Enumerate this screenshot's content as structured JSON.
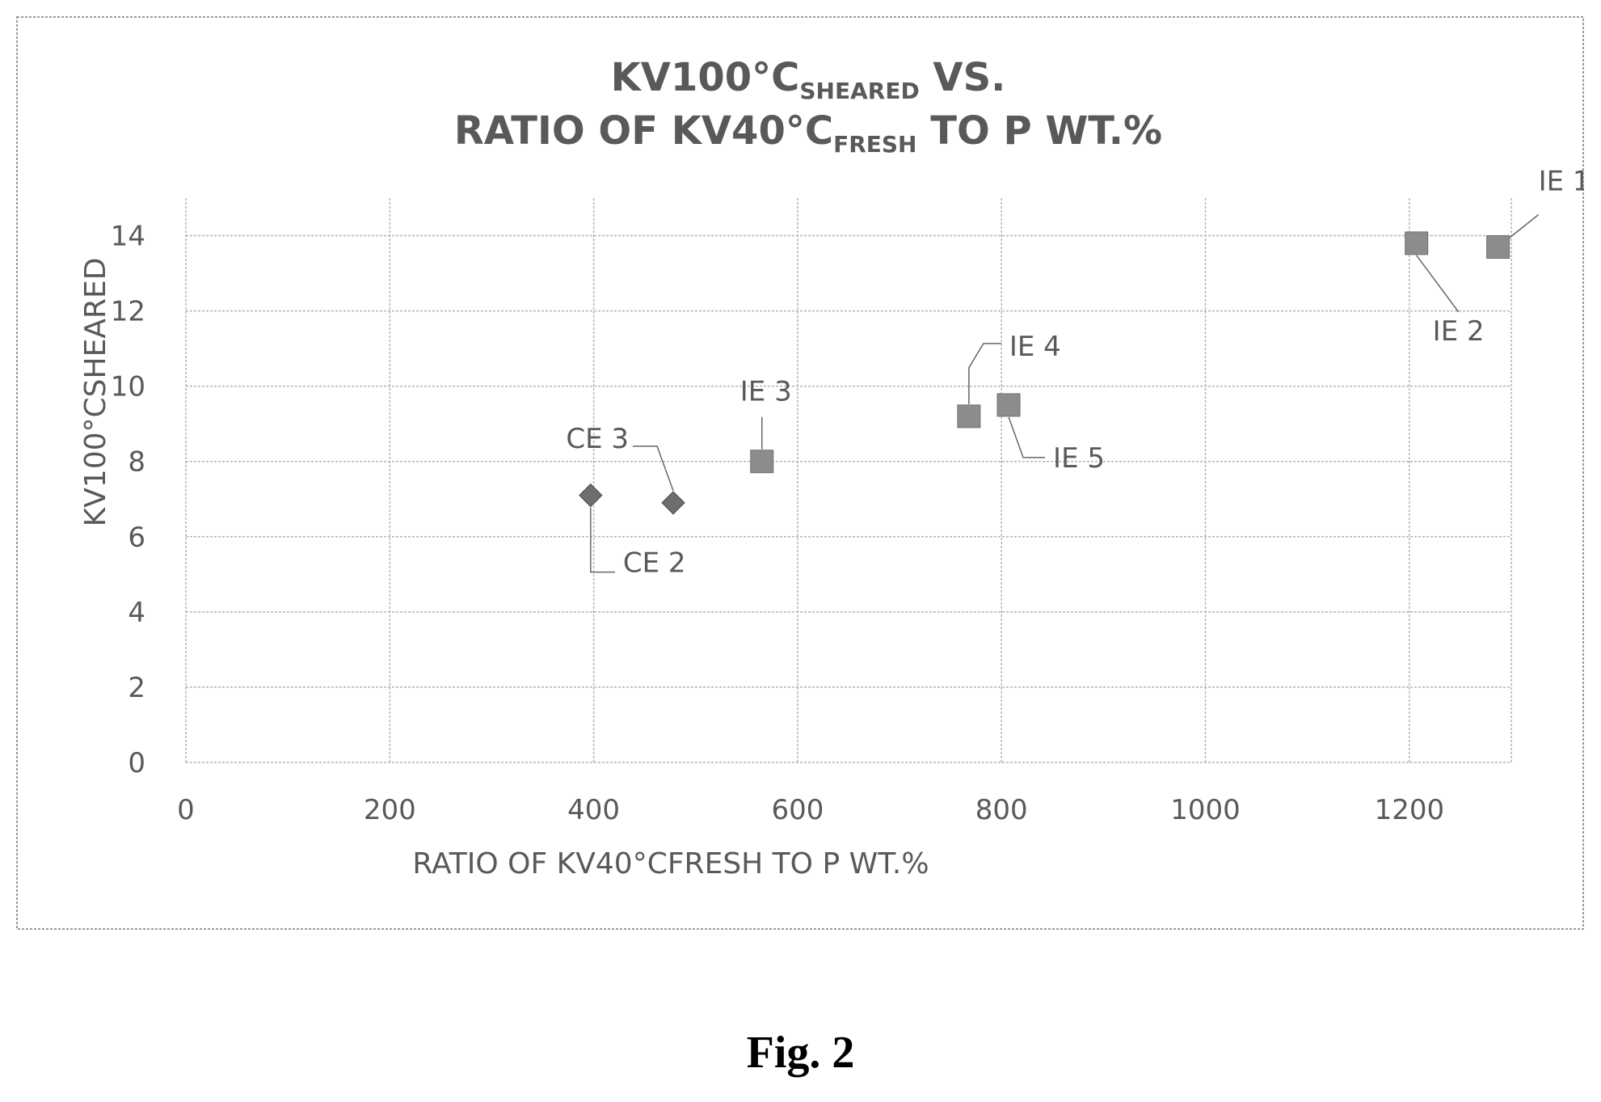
{
  "figure": {
    "label": "Fig. 2"
  },
  "colors": {
    "frame": "#9a9a9a",
    "grid": "#b4b4b4",
    "axis_text": "#595959",
    "title_text": "#595959",
    "ce_marker": "#6e6e6e",
    "ie_marker": "#8c8c8c",
    "leader": "#666666"
  },
  "chart_data": {
    "type": "scatter",
    "title": {
      "line1": {
        "main": "KV100°C",
        "sub": "SHEARED",
        "tail": " VS."
      },
      "line2": {
        "main": "RATIO OF KV40°C",
        "sub": "FRESH",
        "tail": " TO P WT.%"
      }
    },
    "xlabel": "RATIO OF KV40°CFRESH TO P WT.%",
    "ylabel": "KV100°CSHEARED",
    "xlim": [
      0,
      1300
    ],
    "ylim": [
      0,
      15
    ],
    "xticks": [
      0,
      200,
      400,
      600,
      800,
      1000,
      1200
    ],
    "yticks": [
      0,
      2,
      4,
      6,
      8,
      10,
      12,
      14
    ],
    "grid": true,
    "series": [
      {
        "marker": "diamond",
        "points": [
          {
            "x": 397,
            "y": 7.1,
            "label": "CE 2"
          },
          {
            "x": 478,
            "y": 6.9,
            "label": "CE 3"
          }
        ]
      },
      {
        "marker": "square",
        "points": [
          {
            "x": 1287,
            "y": 13.7,
            "label": "IE 1"
          },
          {
            "x": 1207,
            "y": 13.8,
            "label": "IE 2"
          },
          {
            "x": 565,
            "y": 8.0,
            "label": "IE 3"
          },
          {
            "x": 768,
            "y": 9.2,
            "label": "IE 4"
          },
          {
            "x": 807,
            "y": 9.5,
            "label": "IE 5"
          }
        ]
      }
    ]
  }
}
